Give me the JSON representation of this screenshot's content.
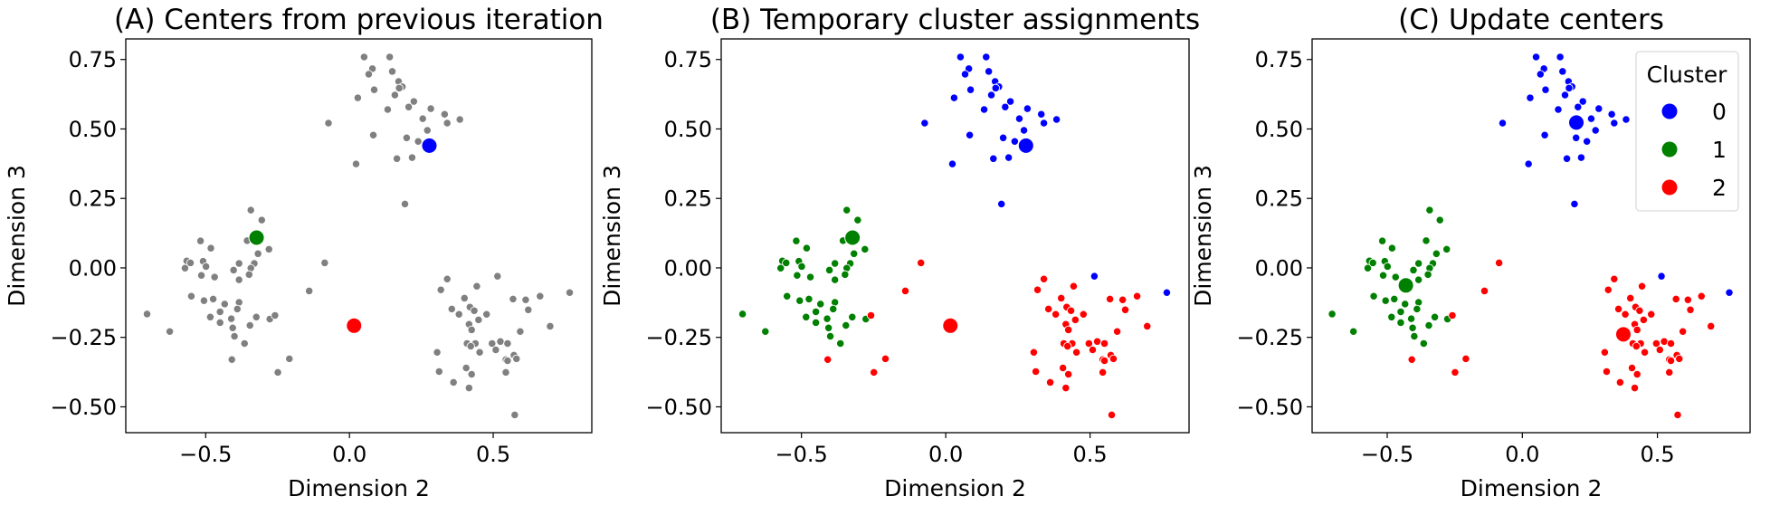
{
  "chart_data": {
    "type": "scatter",
    "shared": {
      "xlabel": "Dimension 2",
      "ylabel": "Dimension 3",
      "xlim": [
        -0.778,
        0.843
      ],
      "ylim": [
        -0.593,
        0.824
      ],
      "xticks": [
        -0.5,
        0.0,
        0.5
      ],
      "xtick_labels": [
        "−0.5",
        "0.0",
        "0.5"
      ],
      "yticks": [
        0.75,
        0.5,
        0.25,
        0.0,
        -0.25,
        -0.5
      ],
      "ytick_labels": [
        "0.75",
        "0.50",
        "0.25",
        "0.00",
        "−0.25",
        "−0.50"
      ],
      "grid": false
    },
    "colors": {
      "unassigned": "#808080",
      "0": "#0000ff",
      "1": "#008000",
      "2": "#ff0000"
    },
    "points_columns": [
      "x",
      "y",
      "cluster"
    ],
    "points": [
      [
        0.051,
        0.759,
        0
      ],
      [
        0.14,
        0.759,
        0
      ],
      [
        0.08,
        0.717,
        0
      ],
      [
        0.067,
        0.697,
        0
      ],
      [
        0.149,
        0.707,
        0
      ],
      [
        0.171,
        0.671,
        0
      ],
      [
        0.184,
        0.652,
        0
      ],
      [
        0.173,
        0.647,
        0
      ],
      [
        0.086,
        0.641,
        0
      ],
      [
        0.029,
        0.612,
        0
      ],
      [
        0.158,
        0.622,
        0
      ],
      [
        0.224,
        0.599,
        0
      ],
      [
        0.133,
        0.57,
        0
      ],
      [
        0.206,
        0.579,
        0
      ],
      [
        0.283,
        0.573,
        0
      ],
      [
        0.255,
        0.537,
        0
      ],
      [
        0.331,
        0.553,
        0
      ],
      [
        0.34,
        0.521,
        0
      ],
      [
        0.384,
        0.534,
        0
      ],
      [
        -0.073,
        0.521,
        0
      ],
      [
        0.083,
        0.478,
        0
      ],
      [
        0.199,
        0.468,
        0
      ],
      [
        0.271,
        0.495,
        0
      ],
      [
        0.239,
        0.455,
        0
      ],
      [
        0.165,
        0.393,
        0
      ],
      [
        0.218,
        0.397,
        0
      ],
      [
        0.023,
        0.374,
        0
      ],
      [
        0.193,
        0.23,
        0
      ],
      [
        0.515,
        -0.03,
        0
      ],
      [
        0.766,
        -0.089,
        0
      ],
      [
        -0.343,
        0.208,
        1
      ],
      [
        -0.305,
        0.172,
        1
      ],
      [
        -0.356,
        0.098,
        1
      ],
      [
        -0.28,
        0.067,
        1
      ],
      [
        -0.318,
        0.051,
        1
      ],
      [
        -0.518,
        0.097,
        1
      ],
      [
        -0.482,
        0.071,
        1
      ],
      [
        -0.566,
        0.025,
        1
      ],
      [
        -0.553,
        0.018,
        1
      ],
      [
        -0.509,
        0.024,
        1
      ],
      [
        -0.572,
        -0.001,
        1
      ],
      [
        -0.499,
        0.005,
        1
      ],
      [
        -0.384,
        0.016,
        1
      ],
      [
        -0.331,
        0.016,
        1
      ],
      [
        -0.403,
        -0.008,
        1
      ],
      [
        -0.343,
        -0.001,
        1
      ],
      [
        -0.515,
        -0.027,
        1
      ],
      [
        -0.469,
        -0.033,
        1
      ],
      [
        -0.349,
        -0.024,
        1
      ],
      [
        -0.384,
        -0.043,
        1
      ],
      [
        -0.55,
        -0.102,
        1
      ],
      [
        -0.506,
        -0.118,
        1
      ],
      [
        -0.474,
        -0.112,
        1
      ],
      [
        -0.434,
        -0.13,
        1
      ],
      [
        -0.384,
        -0.124,
        1
      ],
      [
        -0.39,
        -0.148,
        1
      ],
      [
        -0.45,
        -0.158,
        1
      ],
      [
        -0.484,
        -0.177,
        1
      ],
      [
        -0.411,
        -0.183,
        1
      ],
      [
        -0.324,
        -0.177,
        1
      ],
      [
        -0.45,
        -0.197,
        1
      ],
      [
        -0.406,
        -0.216,
        1
      ],
      [
        -0.346,
        -0.207,
        1
      ],
      [
        -0.277,
        -0.184,
        1
      ],
      [
        -0.4,
        -0.246,
        1
      ],
      [
        -0.365,
        -0.272,
        1
      ],
      [
        -0.704,
        -0.166,
        1
      ],
      [
        -0.625,
        -0.229,
        1
      ],
      [
        -0.259,
        -0.171,
        2
      ],
      [
        -0.409,
        -0.33,
        2
      ],
      [
        -0.209,
        -0.327,
        2
      ],
      [
        -0.249,
        -0.376,
        2
      ],
      [
        -0.086,
        0.018,
        2
      ],
      [
        -0.14,
        -0.083,
        2
      ],
      [
        0.34,
        -0.04,
        2
      ],
      [
        0.318,
        -0.079,
        2
      ],
      [
        0.443,
        -0.066,
        2
      ],
      [
        0.4,
        -0.109,
        2
      ],
      [
        0.569,
        -0.112,
        2
      ],
      [
        0.613,
        -0.115,
        2
      ],
      [
        0.663,
        -0.102,
        2
      ],
      [
        0.356,
        -0.148,
        2
      ],
      [
        0.419,
        -0.141,
        2
      ],
      [
        0.434,
        -0.154,
        2
      ],
      [
        0.381,
        -0.167,
        2
      ],
      [
        0.477,
        -0.167,
        2
      ],
      [
        0.449,
        -0.187,
        2
      ],
      [
        0.622,
        -0.151,
        2
      ],
      [
        0.416,
        -0.203,
        2
      ],
      [
        0.425,
        -0.223,
        2
      ],
      [
        0.594,
        -0.229,
        2
      ],
      [
        0.698,
        -0.21,
        2
      ],
      [
        0.409,
        -0.272,
        2
      ],
      [
        0.438,
        -0.272,
        2
      ],
      [
        0.422,
        -0.282,
        2
      ],
      [
        0.496,
        -0.272,
        2
      ],
      [
        0.525,
        -0.265,
        2
      ],
      [
        0.55,
        -0.272,
        2
      ],
      [
        0.509,
        -0.295,
        2
      ],
      [
        0.453,
        -0.304,
        2
      ],
      [
        0.305,
        -0.304,
        2
      ],
      [
        0.572,
        -0.314,
        2
      ],
      [
        0.581,
        -0.327,
        2
      ],
      [
        0.544,
        -0.33,
        2
      ],
      [
        0.55,
        -0.334,
        2
      ],
      [
        0.312,
        -0.373,
        2
      ],
      [
        0.406,
        -0.36,
        2
      ],
      [
        0.425,
        -0.383,
        2
      ],
      [
        0.544,
        -0.376,
        2
      ],
      [
        0.362,
        -0.412,
        2
      ],
      [
        0.416,
        -0.432,
        2
      ],
      [
        0.575,
        -0.529,
        2
      ]
    ],
    "panels": [
      {
        "title": "(A) Centers from previous iteration",
        "color_points_by_cluster": false,
        "centers": [
          {
            "cluster": 0,
            "x": 0.278,
            "y": 0.44
          },
          {
            "cluster": 1,
            "x": -0.323,
            "y": 0.109
          },
          {
            "cluster": 2,
            "x": 0.016,
            "y": -0.208
          }
        ],
        "legend": null
      },
      {
        "title": "(B) Temporary cluster assignments",
        "color_points_by_cluster": true,
        "centers": [
          {
            "cluster": 0,
            "x": 0.278,
            "y": 0.44
          },
          {
            "cluster": 1,
            "x": -0.323,
            "y": 0.109
          },
          {
            "cluster": 2,
            "x": 0.016,
            "y": -0.208
          }
        ],
        "legend": null
      },
      {
        "title": "(C) Update centers",
        "color_points_by_cluster": true,
        "centers": [
          {
            "cluster": 0,
            "x": 0.2,
            "y": 0.523
          },
          {
            "cluster": 1,
            "x": -0.431,
            "y": -0.063
          },
          {
            "cluster": 2,
            "x": 0.374,
            "y": -0.239
          }
        ],
        "legend": {
          "title": "Cluster",
          "placement": "top-right",
          "entries": [
            "0",
            "1",
            "2"
          ]
        }
      }
    ]
  }
}
